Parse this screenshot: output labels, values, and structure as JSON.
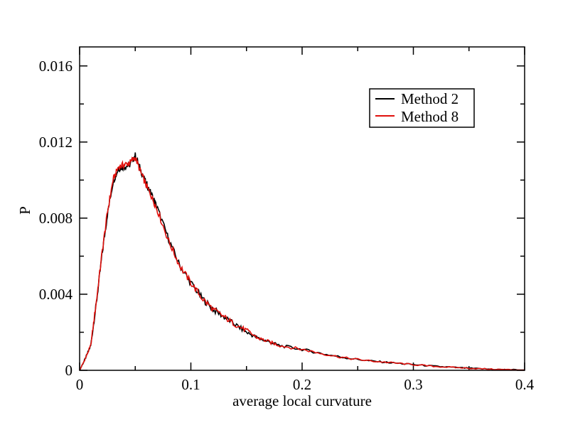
{
  "chart_data": {
    "type": "line",
    "xlabel": "average local curvature",
    "ylabel": "P",
    "xlim": [
      0,
      0.4
    ],
    "ylim": [
      0,
      0.017
    ],
    "xticks": [
      0,
      0.1,
      0.2,
      0.3,
      0.4
    ],
    "xtick_labels": [
      "0",
      "0.1",
      "0.2",
      "0.3",
      "0.4"
    ],
    "yticks": [
      0,
      0.004,
      0.008,
      0.012,
      0.016
    ],
    "ytick_labels": [
      "0",
      "0.004",
      "0.008",
      "0.012",
      "0.016"
    ],
    "grid": false,
    "legend_position": "top-right",
    "series": [
      {
        "name": "Method 2",
        "color": "#000000",
        "x": [
          0,
          0.005,
          0.01,
          0.015,
          0.02,
          0.025,
          0.03,
          0.035,
          0.04,
          0.045,
          0.05,
          0.055,
          0.06,
          0.065,
          0.07,
          0.08,
          0.09,
          0.1,
          0.11,
          0.12,
          0.13,
          0.14,
          0.15,
          0.16,
          0.17,
          0.18,
          0.2,
          0.22,
          0.24,
          0.26,
          0.28,
          0.3,
          0.32,
          0.34,
          0.36,
          0.38,
          0.4
        ],
        "y": [
          0,
          0.0006,
          0.0013,
          0.0035,
          0.006,
          0.0082,
          0.0099,
          0.0106,
          0.0107,
          0.0108,
          0.0113,
          0.0105,
          0.0098,
          0.0092,
          0.0085,
          0.0069,
          0.0055,
          0.0046,
          0.0038,
          0.0032,
          0.0028,
          0.0024,
          0.002,
          0.0017,
          0.0015,
          0.0013,
          0.0011,
          0.00085,
          0.00065,
          0.0005,
          0.0004,
          0.0003,
          0.00021,
          0.00014,
          8e-05,
          4e-05,
          2e-05
        ]
      },
      {
        "name": "Method 8",
        "color": "#e0100c",
        "x": [
          0,
          0.005,
          0.01,
          0.015,
          0.02,
          0.025,
          0.03,
          0.035,
          0.04,
          0.045,
          0.05,
          0.055,
          0.06,
          0.065,
          0.07,
          0.08,
          0.09,
          0.1,
          0.11,
          0.12,
          0.13,
          0.14,
          0.15,
          0.16,
          0.17,
          0.18,
          0.2,
          0.22,
          0.24,
          0.26,
          0.28,
          0.3,
          0.32,
          0.34,
          0.36,
          0.38,
          0.4
        ],
        "y": [
          0,
          0.0006,
          0.0013,
          0.0036,
          0.0061,
          0.0083,
          0.01,
          0.0107,
          0.0108,
          0.0109,
          0.0112,
          0.0104,
          0.0097,
          0.0091,
          0.0084,
          0.0068,
          0.0055,
          0.0046,
          0.0038,
          0.0032,
          0.0028,
          0.0024,
          0.0021,
          0.0017,
          0.0015,
          0.0013,
          0.0011,
          0.00085,
          0.00064,
          0.0005,
          0.0004,
          0.0003,
          0.0002,
          0.00014,
          8e-05,
          4e-05,
          2e-05
        ]
      }
    ]
  }
}
